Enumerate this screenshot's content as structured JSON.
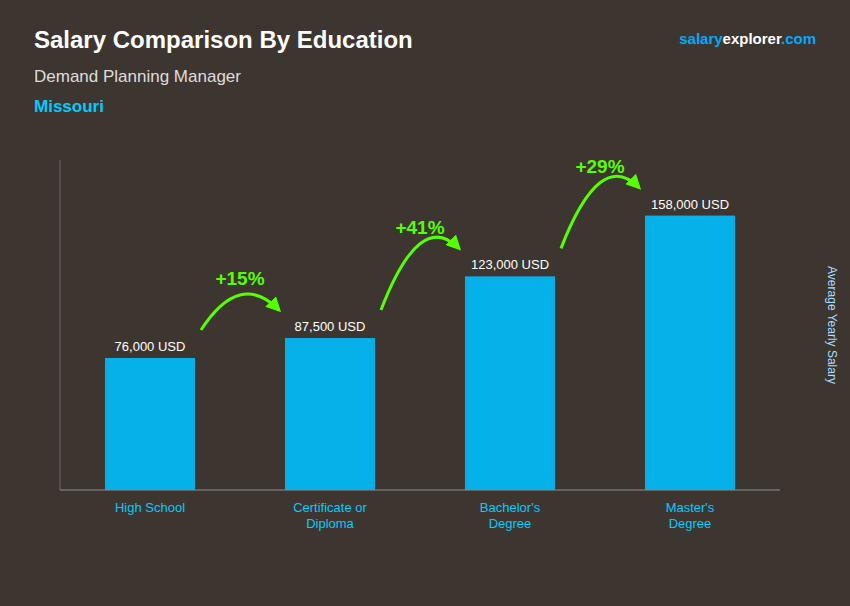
{
  "chart_data": {
    "type": "bar",
    "title": "Salary Comparison By Education",
    "subtitle": "Demand Planning Manager",
    "location": "Missouri",
    "website": [
      "salary",
      "explorer",
      ".com"
    ],
    "ylabel": "Average Yearly Salary",
    "categories": [
      "High School",
      "Certificate or\nDiploma",
      "Bachelor's\nDegree",
      "Master's\nDegree"
    ],
    "values": [
      76000,
      87500,
      123000,
      158000
    ],
    "value_labels": [
      "76,000 USD",
      "87,500 USD",
      "123,000 USD",
      "158,000 USD"
    ],
    "annotations": [
      "+15%",
      "+41%",
      "+29%"
    ],
    "color": "#00BFFF",
    "ylim": [
      0,
      190000
    ],
    "tick_labels": false,
    "data_labels": true,
    "grid": false
  }
}
